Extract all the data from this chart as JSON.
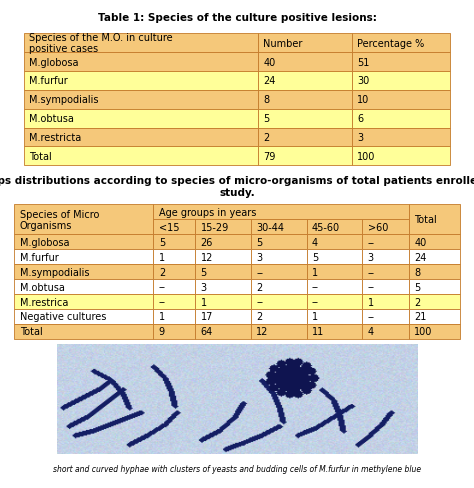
{
  "title1": "Table 1: Species of the culture positive lesions:",
  "table1_headers": [
    "Species of the M.O. in culture\npositive cases",
    "Number",
    "Percentage %"
  ],
  "table1_rows": [
    [
      "M.globosa",
      "40",
      "51"
    ],
    [
      "M.furfur",
      "24",
      "30"
    ],
    [
      "M.sympodialis",
      "8",
      "10"
    ],
    [
      "M.obtusa",
      "5",
      "6"
    ],
    [
      "M.restricta",
      "2",
      "3"
    ],
    [
      "Total",
      "79",
      "100"
    ]
  ],
  "table1_row_colors": [
    [
      "#f5c87a",
      "#f5c87a",
      "#f5c87a"
    ],
    [
      "#ffff99",
      "#ffff99",
      "#ffff99"
    ],
    [
      "#f5c87a",
      "#f5c87a",
      "#f5c87a"
    ],
    [
      "#ffff99",
      "#ffff99",
      "#ffff99"
    ],
    [
      "#f5c87a",
      "#f5c87a",
      "#f5c87a"
    ],
    [
      "#ffff99",
      "#ffff99",
      "#ffff99"
    ]
  ],
  "table1_header_color": "#f5c87a",
  "caption2": "ge groups distributions according to species of micro-organisms of total patients enrolled in the\nstudy.",
  "table2_rows": [
    [
      "M.globosa",
      "5",
      "26",
      "5",
      "4",
      "--",
      "40"
    ],
    [
      "M.furfur",
      "1",
      "12",
      "3",
      "5",
      "3",
      "24"
    ],
    [
      "M.sympodialis",
      "2",
      "5",
      "--",
      "1",
      "--",
      "8"
    ],
    [
      "M.obtusa",
      "--",
      "3",
      "2",
      "--",
      "--",
      "5"
    ],
    [
      "M.restrica",
      "--",
      "1",
      "--",
      "--",
      "1",
      "2"
    ],
    [
      "Negative cultures",
      "1",
      "17",
      "2",
      "1",
      "--",
      "21"
    ],
    [
      "Total",
      "9",
      "64",
      "12",
      "11",
      "4",
      "100"
    ]
  ],
  "table2_row_colors": [
    [
      "#f5c87a",
      "#f5c87a",
      "#f5c87a",
      "#f5c87a",
      "#f5c87a",
      "#f5c87a",
      "#f5c87a"
    ],
    [
      "#ffffff",
      "#ffffff",
      "#ffffff",
      "#ffffff",
      "#ffffff",
      "#ffffff",
      "#ffffff"
    ],
    [
      "#f5c87a",
      "#f5c87a",
      "#f5c87a",
      "#f5c87a",
      "#f5c87a",
      "#f5c87a",
      "#f5c87a"
    ],
    [
      "#ffffff",
      "#ffffff",
      "#ffffff",
      "#ffffff",
      "#ffffff",
      "#ffffff",
      "#ffffff"
    ],
    [
      "#ffff99",
      "#ffff99",
      "#ffff99",
      "#ffff99",
      "#ffff99",
      "#ffff99",
      "#ffff99"
    ],
    [
      "#ffffff",
      "#ffffff",
      "#ffffff",
      "#ffffff",
      "#ffffff",
      "#ffffff",
      "#ffffff"
    ],
    [
      "#f5c87a",
      "#f5c87a",
      "#f5c87a",
      "#f5c87a",
      "#f5c87a",
      "#f5c87a",
      "#f5c87a"
    ]
  ],
  "table2_header_color": "#f5c87a",
  "border_color": "#c47a2a",
  "bg_color": "#ffffff",
  "font_size": 7.0,
  "caption_bottom": "short and curved hyphae with clusters of yeasts and budding cells of M.furfur in methylene blue"
}
